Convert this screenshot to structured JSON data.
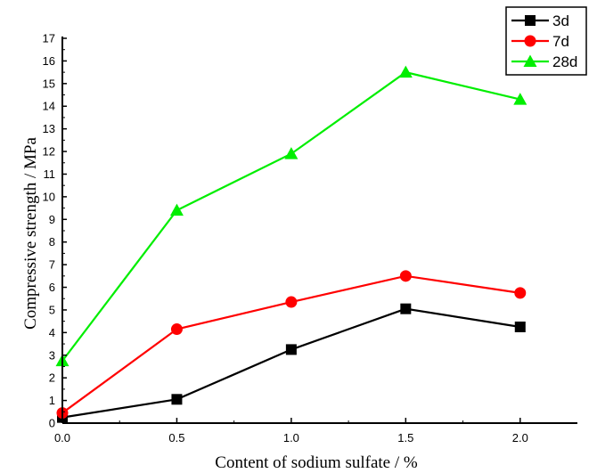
{
  "chart_data": {
    "type": "line",
    "xlabel": "Content of sodium sulfate / %",
    "ylabel": "Compressive strength / MPa",
    "xlim": [
      0.0,
      2.25
    ],
    "ylim": [
      0,
      17
    ],
    "x_ticks": [
      0.0,
      0.5,
      1.0,
      1.5,
      2.0
    ],
    "x_tick_labels": [
      "0.0",
      "0.5",
      "1.0",
      "1.5",
      "2.0"
    ],
    "y_ticks": [
      0,
      1,
      2,
      3,
      4,
      5,
      6,
      7,
      8,
      9,
      10,
      11,
      12,
      13,
      14,
      15,
      16,
      17
    ],
    "y_tick_labels": [
      "0",
      "1",
      "2",
      "3",
      "4",
      "5",
      "6",
      "7",
      "8",
      "9",
      "10",
      "11",
      "12",
      "13",
      "14",
      "15",
      "16",
      "17"
    ],
    "legend_position": "top-right",
    "x": [
      0.0,
      0.5,
      1.0,
      1.5,
      2.0
    ],
    "series": [
      {
        "name": "3d",
        "values": [
          0.25,
          1.05,
          3.25,
          5.05,
          4.25
        ],
        "color": "#000000",
        "marker": "square"
      },
      {
        "name": "7d",
        "values": [
          0.45,
          4.15,
          5.35,
          6.5,
          5.75
        ],
        "color": "#ff0000",
        "marker": "circle"
      },
      {
        "name": "28d",
        "values": [
          2.75,
          9.4,
          11.9,
          15.5,
          14.3
        ],
        "color": "#00ee00",
        "marker": "triangle"
      }
    ]
  }
}
